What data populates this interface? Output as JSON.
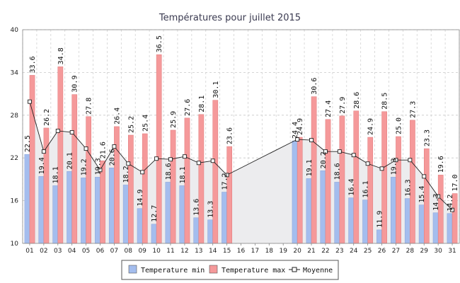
{
  "chart_data": {
    "type": "bar",
    "title": "Températures pour juillet 2015",
    "categories": [
      "01",
      "02",
      "03",
      "04",
      "05",
      "06",
      "07",
      "08",
      "09",
      "10",
      "11",
      "12",
      "13",
      "14",
      "15",
      "16",
      "17",
      "18",
      "19",
      "20",
      "21",
      "22",
      "23",
      "24",
      "25",
      "26",
      "27",
      "28",
      "29",
      "30",
      "31"
    ],
    "ylim": [
      10,
      40
    ],
    "yticks": [
      10,
      16,
      22,
      28,
      34,
      40
    ],
    "grid": true,
    "legend_position": "bottom",
    "series": [
      {
        "name": "Temperature min",
        "type": "bar",
        "color": "#a4bdee",
        "labels": [
          "22.5",
          "19.4",
          "18.1",
          "20.1",
          "19.2",
          "19.3",
          "20.6",
          "18.2",
          "14.9",
          "12.7",
          "18.6",
          "18.1",
          "13.6",
          "13.3",
          "17.2",
          null,
          null,
          null,
          null,
          "24.4",
          "19.1",
          "20.2",
          "18.6",
          "16.4",
          "16.1",
          "11.9",
          "19.3",
          "16.3",
          "15.4",
          "14.3",
          "14.2"
        ],
        "values": [
          22.5,
          19.4,
          18.1,
          20.1,
          19.2,
          19.3,
          20.6,
          18.2,
          14.9,
          12.7,
          18.6,
          18.1,
          13.6,
          13.3,
          17.2,
          null,
          null,
          null,
          null,
          24.4,
          19.1,
          20.2,
          18.6,
          16.4,
          16.1,
          11.9,
          19.3,
          16.3,
          15.4,
          14.3,
          14.2
        ]
      },
      {
        "name": "Temperature max",
        "type": "bar",
        "color": "#f5999a",
        "labels": [
          "33.6",
          "26.2",
          "34.8",
          "30.9",
          "27.8",
          "21.6",
          "26.4",
          "25.2",
          "25.4",
          "36.5",
          "25.9",
          "27.6",
          "28.1",
          "30.1",
          "23.6",
          null,
          null,
          null,
          null,
          "24.9",
          "30.6",
          "27.4",
          "27.9",
          "28.6",
          "24.9",
          "28.5",
          "25.0",
          "27.3",
          "23.3",
          "19.6",
          "17.0"
        ],
        "values": [
          33.6,
          26.2,
          34.8,
          30.9,
          27.8,
          21.6,
          26.4,
          25.2,
          25.4,
          36.5,
          25.9,
          27.6,
          28.1,
          30.1,
          23.6,
          null,
          null,
          null,
          null,
          24.9,
          30.6,
          27.4,
          27.9,
          28.6,
          24.9,
          28.5,
          25.0,
          27.3,
          23.3,
          19.6,
          17.0
        ]
      },
      {
        "name": "Moyenne",
        "type": "line",
        "color": "#222222",
        "area_color": "#ececee",
        "values": [
          29.9,
          22.9,
          25.8,
          25.6,
          23.3,
          20.3,
          23.6,
          21.2,
          20.0,
          21.9,
          21.8,
          22.2,
          21.3,
          21.6,
          19.6,
          null,
          null,
          null,
          null,
          24.6,
          24.5,
          22.9,
          22.9,
          22.4,
          21.2,
          20.5,
          21.7,
          21.7,
          19.4,
          16.6,
          14.7
        ]
      }
    ]
  }
}
